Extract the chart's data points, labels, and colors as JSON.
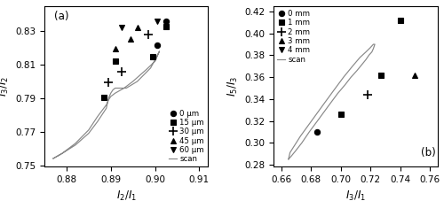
{
  "panel_a": {
    "xlabel": "$I_2/I_1$",
    "ylabel": "$I_3/I_2$",
    "label": "(a)",
    "xlim": [
      0.875,
      0.912
    ],
    "ylim": [
      0.749,
      0.845
    ],
    "xticks": [
      0.88,
      0.89,
      0.9,
      0.91
    ],
    "yticks": [
      0.75,
      0.77,
      0.79,
      0.81,
      0.83
    ],
    "series": {
      "0um": {
        "marker": "o",
        "label": "0 μm",
        "x": [
          0.9005,
          0.9025
        ],
        "y": [
          0.8215,
          0.836
        ]
      },
      "15um": {
        "marker": "s",
        "label": "15 μm",
        "x": [
          0.8885,
          0.891,
          0.8995,
          0.9025
        ],
        "y": [
          0.7905,
          0.812,
          0.815,
          0.833
        ]
      },
      "30um": {
        "marker": "+",
        "label": "30 μm",
        "x": [
          0.8895,
          0.8925,
          0.8985
        ],
        "y": [
          0.7995,
          0.806,
          0.828
        ]
      },
      "45um": {
        "marker": "^",
        "label": "45 μm",
        "x": [
          0.891,
          0.8945,
          0.896
        ],
        "y": [
          0.8195,
          0.8255,
          0.832
        ]
      },
      "60um": {
        "marker": "v",
        "label": "60 μm",
        "x": [
          0.8925,
          0.9005
        ],
        "y": [
          0.832,
          0.836
        ]
      }
    },
    "scan_x": [
      0.877,
      0.879,
      0.882,
      0.885,
      0.887,
      0.889,
      0.8895,
      0.89,
      0.8905,
      0.891,
      0.892,
      0.8935,
      0.896,
      0.899,
      0.901,
      0.9,
      0.898,
      0.895,
      0.893,
      0.891,
      0.89,
      0.8895,
      0.889,
      0.887,
      0.885,
      0.882,
      0.879,
      0.877
    ],
    "scan_y": [
      0.754,
      0.757,
      0.762,
      0.769,
      0.776,
      0.784,
      0.79,
      0.793,
      0.795,
      0.796,
      0.796,
      0.796,
      0.8,
      0.808,
      0.818,
      0.812,
      0.807,
      0.8,
      0.796,
      0.793,
      0.791,
      0.789,
      0.786,
      0.779,
      0.771,
      0.763,
      0.757,
      0.754
    ]
  },
  "panel_b": {
    "xlabel": "$I_3/I_1$",
    "ylabel": "$I_5/I_3$",
    "label": "(b)",
    "xlim": [
      0.655,
      0.765
    ],
    "ylim": [
      0.278,
      0.425
    ],
    "xticks": [
      0.66,
      0.68,
      0.7,
      0.72,
      0.74,
      0.76
    ],
    "yticks": [
      0.28,
      0.3,
      0.32,
      0.34,
      0.36,
      0.38,
      0.4,
      0.42
    ],
    "series": {
      "0mm": {
        "marker": "o",
        "label": "0 mm",
        "x": [
          0.684
        ],
        "y": [
          0.31
        ]
      },
      "1mm": {
        "marker": "s",
        "label": "1 mm",
        "x": [
          0.7,
          0.727,
          0.74
        ],
        "y": [
          0.326,
          0.362,
          0.412
        ]
      },
      "2mm": {
        "marker": "+",
        "label": "2 mm",
        "x": [
          0.718
        ],
        "y": [
          0.344
        ]
      },
      "3mm": {
        "marker": "^",
        "label": "3 mm",
        "x": [
          0.75
        ],
        "y": [
          0.362
        ]
      },
      "4mm": {
        "marker": "v",
        "label": "4 mm",
        "x": [],
        "y": []
      }
    },
    "scan_x": [
      0.665,
      0.667,
      0.67,
      0.674,
      0.679,
      0.685,
      0.692,
      0.698,
      0.703,
      0.707,
      0.711,
      0.714,
      0.717,
      0.719,
      0.721,
      0.722,
      0.723,
      0.722,
      0.72,
      0.717,
      0.713,
      0.708,
      0.702,
      0.696,
      0.689,
      0.681,
      0.673,
      0.666,
      0.665
    ],
    "scan_y": [
      0.285,
      0.288,
      0.293,
      0.3,
      0.31,
      0.321,
      0.334,
      0.345,
      0.353,
      0.36,
      0.366,
      0.371,
      0.376,
      0.38,
      0.383,
      0.386,
      0.39,
      0.39,
      0.387,
      0.383,
      0.378,
      0.37,
      0.36,
      0.349,
      0.336,
      0.321,
      0.306,
      0.291,
      0.285
    ]
  },
  "scan_color": "#888888",
  "marker_color": "black",
  "markersize": 4.5,
  "plus_markersize": 7,
  "fontsize": 7.5,
  "label_fontsize": 8.5,
  "tick_fontsize": 7.5
}
